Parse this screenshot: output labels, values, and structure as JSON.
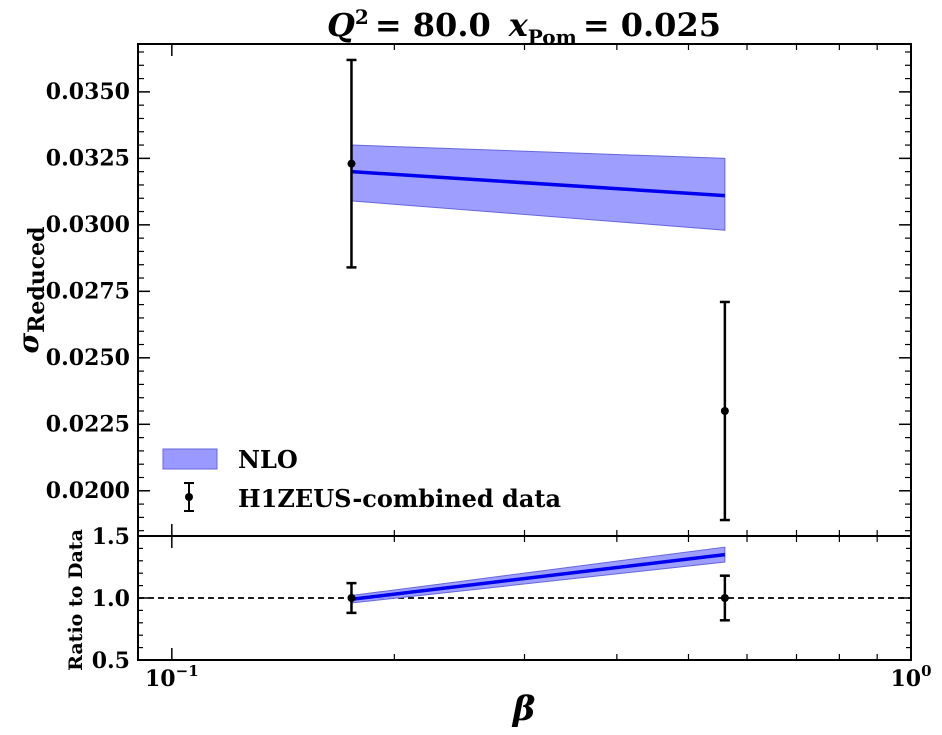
{
  "chart_data": [
    {
      "type": "line",
      "panel": "main",
      "title_parts": {
        "q2_label": "Q",
        "q2_sup": "2",
        "q2_value": "= 80.0",
        "xpom_label": "x",
        "xpom_sub": "Pom",
        "xpom_value": "= 0.025"
      },
      "ylabel_main": "σ",
      "ylabel_sub": "Reduced",
      "xscale": "log",
      "xlim": [
        0.09,
        1.0
      ],
      "ylim": [
        0.0183,
        0.0368
      ],
      "yticks": [
        0.02,
        0.0225,
        0.025,
        0.0275,
        0.03,
        0.0325,
        0.035
      ],
      "ytick_labels": [
        "0.0200",
        "0.0225",
        "0.0250",
        "0.0275",
        "0.0300",
        "0.0325",
        "0.0350"
      ],
      "series": [
        {
          "name": "NLO",
          "kind": "band_with_line",
          "color": "#0000ee",
          "band_color": "#9999ff",
          "x": [
            0.175,
            0.56
          ],
          "y": [
            0.032,
            0.0311
          ],
          "y_low": [
            0.0309,
            0.0298
          ],
          "y_high": [
            0.033,
            0.0325
          ]
        },
        {
          "name": "H1ZEUS-combined data",
          "kind": "errorbar",
          "color": "#000000",
          "x": [
            0.175,
            0.56
          ],
          "y": [
            0.0323,
            0.023
          ],
          "yerr": [
            0.0039,
            0.0041
          ]
        }
      ],
      "legend": {
        "location": "lower-left",
        "entries": [
          "NLO",
          "H1ZEUS-combined data"
        ]
      }
    },
    {
      "type": "line",
      "panel": "ratio",
      "ylabel": "Ratio to Data",
      "xlabel": "β",
      "xscale": "log",
      "xlim": [
        0.09,
        1.0
      ],
      "ylim": [
        0.5,
        1.5
      ],
      "yticks": [
        0.5,
        1.0,
        1.5
      ],
      "ytick_labels": [
        "0.5",
        "1.0",
        "1.5"
      ],
      "xtick_major": [
        {
          "value": 0.1,
          "label": "10",
          "exponent": "−1"
        },
        {
          "value": 1.0,
          "label": "10",
          "exponent": "0"
        }
      ],
      "reference_line": 1.0,
      "series": [
        {
          "name": "NLO",
          "kind": "band_with_line",
          "x": [
            0.175,
            0.56
          ],
          "y": [
            0.99,
            1.35
          ],
          "y_low": [
            0.96,
            1.29
          ],
          "y_high": [
            1.02,
            1.41
          ]
        },
        {
          "name": "H1ZEUS-combined data",
          "kind": "errorbar",
          "x": [
            0.175,
            0.56
          ],
          "y": [
            1.0,
            1.0
          ],
          "yerr": [
            0.12,
            0.18
          ]
        }
      ]
    }
  ]
}
